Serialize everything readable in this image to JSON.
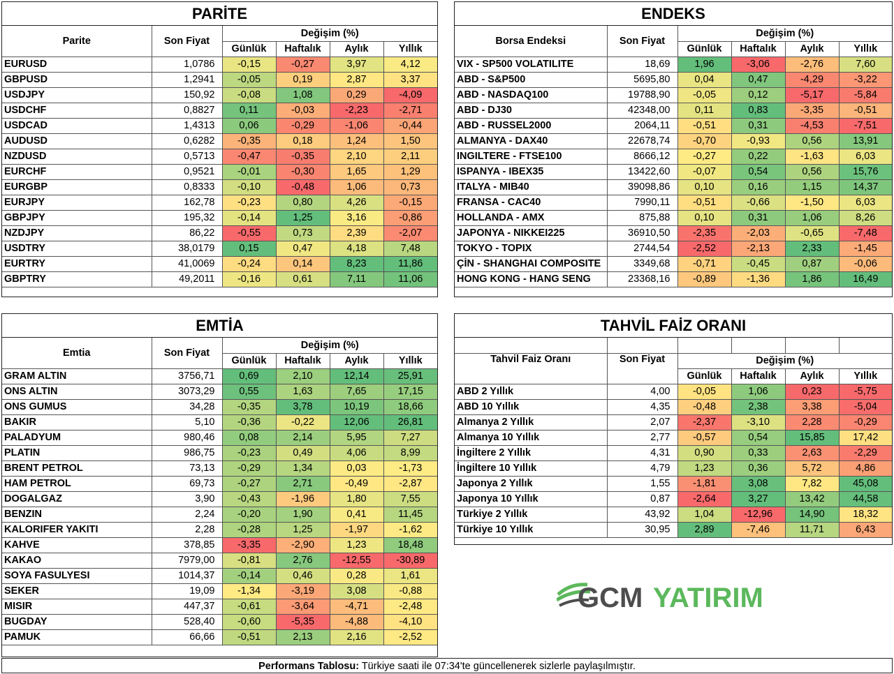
{
  "headers": {
    "gunluk": "Günlük",
    "haftalik": "Haftalık",
    "aylik": "Aylık",
    "yillik": "Yıllık",
    "degisim": "Değişim (%)",
    "son_fiyat": "Son Fiyat"
  },
  "parite": {
    "title": "PARİTE",
    "col_name": "Parite",
    "rows": [
      {
        "name": "EURUSD",
        "price": "1,0786",
        "d": "-0,15",
        "w": "-0,27",
        "m": "3,97",
        "y": "4,12"
      },
      {
        "name": "GBPUSD",
        "price": "1,2941",
        "d": "-0,05",
        "w": "0,19",
        "m": "2,87",
        "y": "3,37"
      },
      {
        "name": "USDJPY",
        "price": "150,92",
        "d": "-0,08",
        "w": "1,08",
        "m": "0,29",
        "y": "-4,09"
      },
      {
        "name": "USDCHF",
        "price": "0,8827",
        "d": "0,11",
        "w": "-0,03",
        "m": "-2,23",
        "y": "-2,71"
      },
      {
        "name": "USDCAD",
        "price": "1,4313",
        "d": "0,06",
        "w": "-0,29",
        "m": "-1,06",
        "y": "-0,44"
      },
      {
        "name": "AUDUSD",
        "price": "0,6282",
        "d": "-0,35",
        "w": "0,18",
        "m": "1,24",
        "y": "1,50"
      },
      {
        "name": "NZDUSD",
        "price": "0,5713",
        "d": "-0,47",
        "w": "-0,35",
        "m": "2,10",
        "y": "2,11"
      },
      {
        "name": "EURCHF",
        "price": "0,9521",
        "d": "-0,01",
        "w": "-0,30",
        "m": "1,65",
        "y": "1,29"
      },
      {
        "name": "EURGBP",
        "price": "0,8333",
        "d": "-0,10",
        "w": "-0,48",
        "m": "1,06",
        "y": "0,73"
      },
      {
        "name": "EURJPY",
        "price": "162,78",
        "d": "-0,23",
        "w": "0,80",
        "m": "4,26",
        "y": "-0,15"
      },
      {
        "name": "GBPJPY",
        "price": "195,32",
        "d": "-0,14",
        "w": "1,25",
        "m": "3,16",
        "y": "-0,86"
      },
      {
        "name": "NZDJPY",
        "price": "86,22",
        "d": "-0,55",
        "w": "0,73",
        "m": "2,39",
        "y": "-2,07"
      },
      {
        "name": "USDTRY",
        "price": "38,0179",
        "d": "0,15",
        "w": "0,47",
        "m": "4,18",
        "y": "7,48"
      },
      {
        "name": "EURTRY",
        "price": "41,0069",
        "d": "-0,24",
        "w": "0,14",
        "m": "8,23",
        "y": "11,86"
      },
      {
        "name": "GBPTRY",
        "price": "49,2011",
        "d": "-0,16",
        "w": "0,61",
        "m": "7,11",
        "y": "11,06"
      }
    ]
  },
  "endeks": {
    "title": "ENDEKS",
    "col_name": "Borsa Endeksi",
    "rows": [
      {
        "name": "VIX  - SP500 VOLATILITE",
        "price": "18,69",
        "d": "1,96",
        "w": "-3,06",
        "m": "-2,76",
        "y": "7,60"
      },
      {
        "name": "ABD - S&P500",
        "price": "5695,80",
        "d": "0,04",
        "w": "0,47",
        "m": "-4,29",
        "y": "-3,22"
      },
      {
        "name": "ABD - NASDAQ100",
        "price": "19788,90",
        "d": "-0,05",
        "w": "0,12",
        "m": "-5,17",
        "y": "-5,84"
      },
      {
        "name": "ABD - DJ30",
        "price": "42348,00",
        "d": "0,11",
        "w": "0,83",
        "m": "-3,35",
        "y": "-0,51"
      },
      {
        "name": "ABD - RUSSEL2000",
        "price": "2064,11",
        "d": "-0,51",
        "w": "0,31",
        "m": "-4,53",
        "y": "-7,51"
      },
      {
        "name": "ALMANYA - DAX40",
        "price": "22678,74",
        "d": "-0,70",
        "w": "-0,93",
        "m": "0,56",
        "y": "13,91"
      },
      {
        "name": "INGILTERE - FTSE100",
        "price": "8666,12",
        "d": "-0,27",
        "w": "0,22",
        "m": "-1,63",
        "y": "6,03"
      },
      {
        "name": "ISPANYA - IBEX35",
        "price": "13422,60",
        "d": "-0,07",
        "w": "0,54",
        "m": "0,56",
        "y": "15,76"
      },
      {
        "name": "ITALYA - MIB40",
        "price": "39098,86",
        "d": "0,10",
        "w": "0,16",
        "m": "1,15",
        "y": "14,37"
      },
      {
        "name": "FRANSA - CAC40",
        "price": "7990,11",
        "d": "-0,51",
        "w": "-0,66",
        "m": "-1,50",
        "y": "6,03"
      },
      {
        "name": "HOLLANDA - AMX",
        "price": "875,88",
        "d": "0,10",
        "w": "0,31",
        "m": "1,06",
        "y": "8,26"
      },
      {
        "name": "JAPONYA - NIKKEI225",
        "price": "36910,50",
        "d": "-2,35",
        "w": "-2,03",
        "m": "-0,65",
        "y": "-7,48"
      },
      {
        "name": "TOKYO - TOPIX",
        "price": "2744,54",
        "d": "-2,52",
        "w": "-2,13",
        "m": "2,33",
        "y": "-1,45"
      },
      {
        "name": "ÇİN - SHANGHAI COMPOSITE",
        "price": "3349,68",
        "d": "-0,71",
        "w": "-0,45",
        "m": "0,87",
        "y": "-0,06"
      },
      {
        "name": "HONG KONG - HANG SENG",
        "price": "23368,16",
        "d": "-0,89",
        "w": "-1,36",
        "m": "1,86",
        "y": "16,49"
      }
    ]
  },
  "emtia": {
    "title": "EMTİA",
    "col_name": "Emtia",
    "rows": [
      {
        "name": "GRAM ALTIN",
        "price": "3756,71",
        "d": "0,69",
        "w": "2,10",
        "m": "12,14",
        "y": "25,91"
      },
      {
        "name": "ONS ALTIN",
        "price": "3073,29",
        "d": "0,55",
        "w": "1,63",
        "m": "7,65",
        "y": "17,15"
      },
      {
        "name": "ONS GUMUS",
        "price": "34,28",
        "d": "-0,35",
        "w": "3,78",
        "m": "10,19",
        "y": "18,66"
      },
      {
        "name": "BAKIR",
        "price": "5,10",
        "d": "-0,36",
        "w": "-0,22",
        "m": "12,06",
        "y": "26,81"
      },
      {
        "name": "PALADYUM",
        "price": "980,46",
        "d": "0,08",
        "w": "2,14",
        "m": "5,95",
        "y": "7,27"
      },
      {
        "name": "PLATIN",
        "price": "986,75",
        "d": "-0,23",
        "w": "0,49",
        "m": "4,06",
        "y": "8,99"
      },
      {
        "name": "BRENT PETROL",
        "price": "73,13",
        "d": "-0,29",
        "w": "1,34",
        "m": "0,03",
        "y": "-1,73"
      },
      {
        "name": "HAM PETROL",
        "price": "69,73",
        "d": "-0,27",
        "w": "2,71",
        "m": "-0,49",
        "y": "-2,87"
      },
      {
        "name": "DOGALGAZ",
        "price": "3,90",
        "d": "-0,43",
        "w": "-1,96",
        "m": "1,80",
        "y": "7,55"
      },
      {
        "name": "BENZIN",
        "price": "2,24",
        "d": "-0,20",
        "w": "1,90",
        "m": "0,41",
        "y": "11,45"
      },
      {
        "name": "KALORIFER YAKITI",
        "price": "2,28",
        "d": "-0,28",
        "w": "1,25",
        "m": "-1,97",
        "y": "-1,62"
      },
      {
        "name": "KAHVE",
        "price": "378,85",
        "d": "-3,35",
        "w": "-2,90",
        "m": "1,23",
        "y": "18,48"
      },
      {
        "name": "KAKAO",
        "price": "7979,00",
        "d": "-0,81",
        "w": "2,76",
        "m": "-12,55",
        "y": "-30,89"
      },
      {
        "name": "SOYA FASULYESI",
        "price": "1014,37",
        "d": "-0,14",
        "w": "0,46",
        "m": "0,28",
        "y": "1,61"
      },
      {
        "name": "SEKER",
        "price": "19,09",
        "d": "-1,34",
        "w": "-3,19",
        "m": "3,08",
        "y": "-0,88"
      },
      {
        "name": "MISIR",
        "price": "447,37",
        "d": "-0,61",
        "w": "-3,64",
        "m": "-4,71",
        "y": "-2,48"
      },
      {
        "name": "BUGDAY",
        "price": "528,40",
        "d": "-0,60",
        "w": "-5,35",
        "m": "-4,88",
        "y": "-4,10"
      },
      {
        "name": "PAMUK",
        "price": "66,66",
        "d": "-0,51",
        "w": "2,13",
        "m": "2,16",
        "y": "-2,52"
      }
    ]
  },
  "tahvil": {
    "title": "TAHVİL FAİZ ORANI",
    "col_name": "Tahvil Faiz Oranı",
    "rows": [
      {
        "name": "ABD 2 Yıllık",
        "price": "4,00",
        "d": "-0,05",
        "w": "1,06",
        "m": "0,23",
        "y": "-5,75"
      },
      {
        "name": "ABD 10 Yıllık",
        "price": "4,35",
        "d": "-0,48",
        "w": "2,38",
        "m": "3,38",
        "y": "-5,04"
      },
      {
        "name": "Almanya 2 Yıllık",
        "price": "2,07",
        "d": "-2,37",
        "w": "-3,10",
        "m": "2,28",
        "y": "-0,29"
      },
      {
        "name": "Almanya 10 Yıllık",
        "price": "2,77",
        "d": "-0,57",
        "w": "0,54",
        "m": "15,85",
        "y": "17,42"
      },
      {
        "name": "İngiltere 2 Yıllık",
        "price": "4,31",
        "d": "0,90",
        "w": "0,33",
        "m": "2,63",
        "y": "-2,29"
      },
      {
        "name": "İngiltere 10 Yıllık",
        "price": "4,79",
        "d": "1,23",
        "w": "0,36",
        "m": "5,72",
        "y": "4,86"
      },
      {
        "name": "Japonya 2 Yıllık",
        "price": "1,55",
        "d": "-1,81",
        "w": "3,08",
        "m": "7,82",
        "y": "45,08"
      },
      {
        "name": "Japonya 10 Yıllık",
        "price": "0,87",
        "d": "-2,64",
        "w": "3,27",
        "m": "13,42",
        "y": "44,58"
      },
      {
        "name": "Türkiye 2 Yıllık",
        "price": "43,92",
        "d": "1,04",
        "w": "-12,96",
        "m": "14,90",
        "y": "18,32"
      },
      {
        "name": "Türkiye 10 Yıllık",
        "price": "30,95",
        "d": "2,89",
        "w": "-7,46",
        "m": "11,71",
        "y": "6,43"
      }
    ]
  },
  "footer": {
    "bold": "Performans Tablosu:",
    "text": " Türkiye saati ile 07:34'te güncellenerek sizlerle paylaşılmıştır."
  },
  "logo": {
    "gcm": "GCM",
    "yatirim": "YATIRIM",
    "gcm_color": "#4d4d4d",
    "yatirim_color": "#5cb85c"
  },
  "colors": {
    "red": "#f8696b",
    "yellow": "#ffeb84",
    "green": "#63be7b"
  }
}
